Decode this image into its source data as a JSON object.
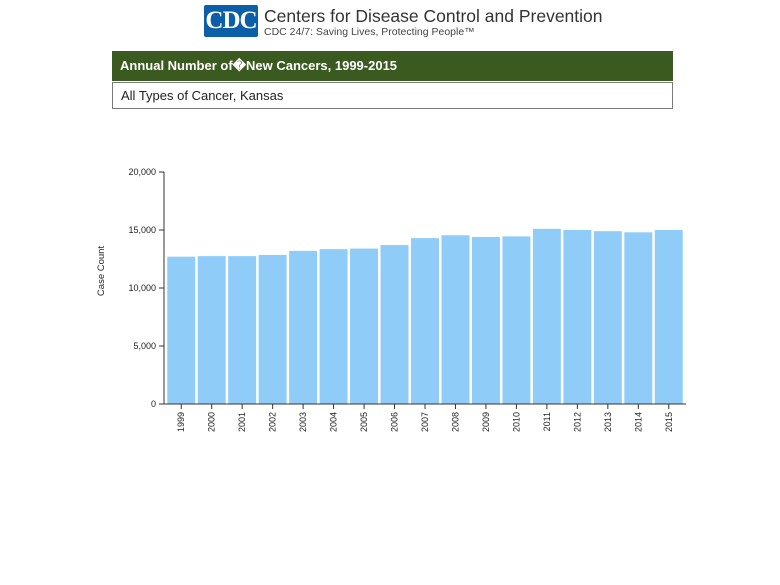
{
  "header": {
    "logo_text": "CDC",
    "org_name": "Centers for Disease Control and Prevention",
    "tagline": "CDC 24/7: Saving Lives, Protecting People™"
  },
  "report": {
    "title": "Annual Number of�New Cancers, 1999-2015",
    "subtitle": "All Types of Cancer, Kansas"
  },
  "colors": {
    "bar": "#8fcdf8",
    "title_bar": "#3a5a1f",
    "logo": "#0b5ea8"
  },
  "chart_data": {
    "type": "bar",
    "title": "Annual Number of New Cancers, 1999-2015",
    "xlabel": "",
    "ylabel": "Case Count",
    "ylim": [
      0,
      20000
    ],
    "yticks": [
      0,
      5000,
      10000,
      15000,
      20000
    ],
    "ytick_labels": [
      "0",
      "5,000",
      "10,000",
      "15,000",
      "20,000"
    ],
    "categories": [
      "1999",
      "2000",
      "2001",
      "2002",
      "2003",
      "2004",
      "2005",
      "2006",
      "2007",
      "2008",
      "2009",
      "2010",
      "2011",
      "2012",
      "2013",
      "2014",
      "2015"
    ],
    "values": [
      12700,
      12750,
      12750,
      12850,
      13200,
      13350,
      13400,
      13700,
      14300,
      14550,
      14400,
      14450,
      15100,
      15000,
      14900,
      14800,
      15000
    ]
  }
}
